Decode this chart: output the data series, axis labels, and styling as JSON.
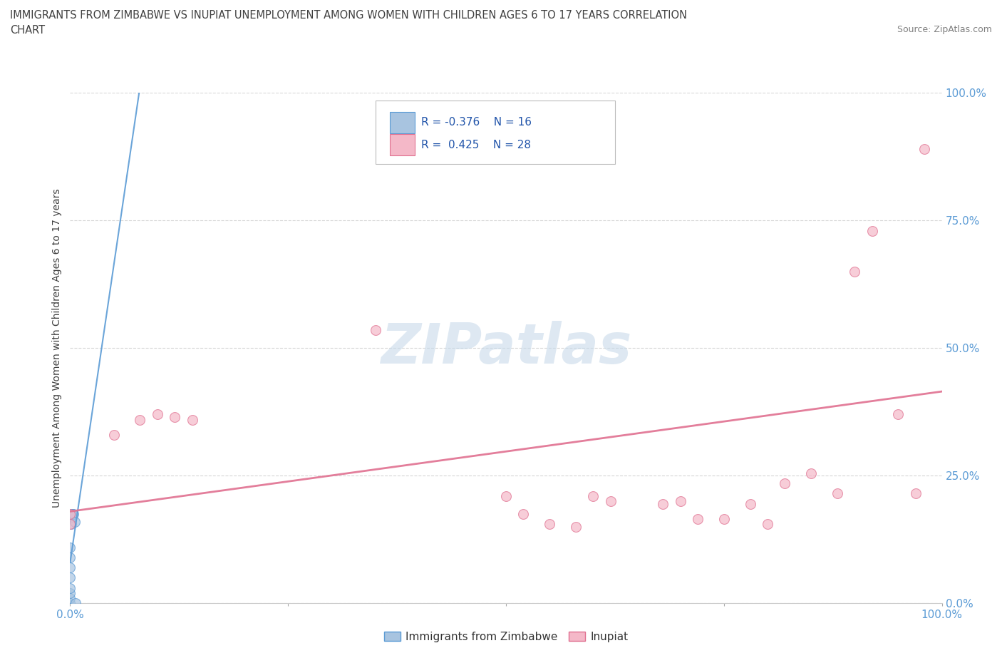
{
  "title_line1": "IMMIGRANTS FROM ZIMBABWE VS INUPIAT UNEMPLOYMENT AMONG WOMEN WITH CHILDREN AGES 6 TO 17 YEARS CORRELATION",
  "title_line2": "CHART",
  "source": "Source: ZipAtlas.com",
  "ylabel": "Unemployment Among Women with Children Ages 6 to 17 years",
  "xlim": [
    0.0,
    1.0
  ],
  "ylim": [
    0.0,
    1.0
  ],
  "xtick_labels": [
    "0.0%",
    "",
    "",
    "",
    "100.0%"
  ],
  "xtick_vals": [
    0.0,
    0.25,
    0.5,
    0.75,
    1.0
  ],
  "ytick_labels": [
    "100.0%",
    "75.0%",
    "50.0%",
    "25.0%",
    "0.0%"
  ],
  "ytick_vals": [
    1.0,
    0.75,
    0.5,
    0.25,
    0.0
  ],
  "zimbabwe_color": "#a8c4e0",
  "zimbabwe_edge": "#5b9bd5",
  "inupiat_color": "#f4b8c8",
  "inupiat_edge": "#e07090",
  "legend_R_zimbabwe": "-0.376",
  "legend_N_zimbabwe": "16",
  "legend_R_inupiat": "0.425",
  "legend_N_inupiat": "28",
  "zimbabwe_x": [
    0.0,
    0.0,
    0.0,
    0.0,
    0.0,
    0.0,
    0.0,
    0.0,
    0.001,
    0.001,
    0.002,
    0.002,
    0.003,
    0.004,
    0.005,
    0.006
  ],
  "zimbabwe_y": [
    0.0,
    0.01,
    0.02,
    0.03,
    0.05,
    0.07,
    0.09,
    0.11,
    0.155,
    0.175,
    0.175,
    0.17,
    0.175,
    0.175,
    0.16,
    0.0
  ],
  "inupiat_x": [
    0.0,
    0.0,
    0.05,
    0.08,
    0.1,
    0.12,
    0.14,
    0.35,
    0.5,
    0.52,
    0.55,
    0.58,
    0.6,
    0.62,
    0.68,
    0.7,
    0.72,
    0.75,
    0.78,
    0.8,
    0.82,
    0.85,
    0.88,
    0.9,
    0.92,
    0.95,
    0.97,
    0.98
  ],
  "inupiat_y": [
    0.155,
    0.175,
    0.33,
    0.36,
    0.37,
    0.365,
    0.36,
    0.535,
    0.21,
    0.175,
    0.155,
    0.15,
    0.21,
    0.2,
    0.195,
    0.2,
    0.165,
    0.165,
    0.195,
    0.155,
    0.235,
    0.255,
    0.215,
    0.65,
    0.73,
    0.37,
    0.215,
    0.89
  ],
  "inupiat_trendline_x0": 0.0,
  "inupiat_trendline_y0": 0.18,
  "inupiat_trendline_x1": 1.0,
  "inupiat_trendline_y1": 0.415,
  "watermark": "ZIPatlas",
  "background_color": "#ffffff",
  "grid_color": "#cccccc",
  "title_color": "#404040",
  "axis_color": "#5b9bd5",
  "legend_text_color": "#2255aa"
}
